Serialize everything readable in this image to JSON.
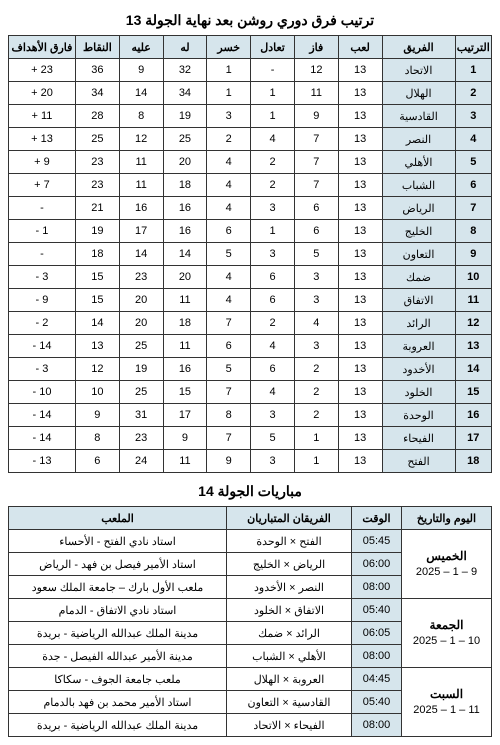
{
  "standings": {
    "title": "ترتيب فرق دوري روشن بعد نهاية الجولة 13",
    "headers": {
      "rank": "الترتيب",
      "team": "الفريق",
      "played": "لعب",
      "won": "فاز",
      "drawn": "تعادل",
      "lost": "خسر",
      "for": "له",
      "against": "عليه",
      "points": "النقاط",
      "gd": "فارق الأهداف"
    },
    "rows": [
      {
        "rank": "1",
        "team": "الاتحاد",
        "p": "13",
        "w": "12",
        "d": "-",
        "l": "1",
        "gf": "32",
        "ga": "9",
        "pts": "36",
        "gd": "23 +"
      },
      {
        "rank": "2",
        "team": "الهلال",
        "p": "13",
        "w": "11",
        "d": "1",
        "l": "1",
        "gf": "34",
        "ga": "14",
        "pts": "34",
        "gd": "20 +"
      },
      {
        "rank": "3",
        "team": "القادسية",
        "p": "13",
        "w": "9",
        "d": "1",
        "l": "3",
        "gf": "19",
        "ga": "8",
        "pts": "28",
        "gd": "11 +"
      },
      {
        "rank": "4",
        "team": "النصر",
        "p": "13",
        "w": "7",
        "d": "4",
        "l": "2",
        "gf": "25",
        "ga": "12",
        "pts": "25",
        "gd": "13 +"
      },
      {
        "rank": "5",
        "team": "الأهلي",
        "p": "13",
        "w": "7",
        "d": "2",
        "l": "4",
        "gf": "20",
        "ga": "11",
        "pts": "23",
        "gd": "9 +"
      },
      {
        "rank": "6",
        "team": "الشباب",
        "p": "13",
        "w": "7",
        "d": "2",
        "l": "4",
        "gf": "18",
        "ga": "11",
        "pts": "23",
        "gd": "7 +"
      },
      {
        "rank": "7",
        "team": "الرياض",
        "p": "13",
        "w": "6",
        "d": "3",
        "l": "4",
        "gf": "16",
        "ga": "16",
        "pts": "21",
        "gd": "-"
      },
      {
        "rank": "8",
        "team": "الخليج",
        "p": "13",
        "w": "6",
        "d": "1",
        "l": "6",
        "gf": "16",
        "ga": "17",
        "pts": "19",
        "gd": "1 -"
      },
      {
        "rank": "9",
        "team": "التعاون",
        "p": "13",
        "w": "5",
        "d": "3",
        "l": "5",
        "gf": "14",
        "ga": "14",
        "pts": "18",
        "gd": "-"
      },
      {
        "rank": "10",
        "team": "ضمك",
        "p": "13",
        "w": "3",
        "d": "6",
        "l": "4",
        "gf": "20",
        "ga": "23",
        "pts": "15",
        "gd": "3 -"
      },
      {
        "rank": "11",
        "team": "الاتفاق",
        "p": "13",
        "w": "3",
        "d": "6",
        "l": "4",
        "gf": "11",
        "ga": "20",
        "pts": "15",
        "gd": "9 -"
      },
      {
        "rank": "12",
        "team": "الرائد",
        "p": "13",
        "w": "4",
        "d": "2",
        "l": "7",
        "gf": "18",
        "ga": "20",
        "pts": "14",
        "gd": "2 -"
      },
      {
        "rank": "13",
        "team": "العروبة",
        "p": "13",
        "w": "3",
        "d": "4",
        "l": "6",
        "gf": "11",
        "ga": "25",
        "pts": "13",
        "gd": "14 -"
      },
      {
        "rank": "14",
        "team": "الأخدود",
        "p": "13",
        "w": "2",
        "d": "6",
        "l": "5",
        "gf": "16",
        "ga": "19",
        "pts": "12",
        "gd": "3 -"
      },
      {
        "rank": "15",
        "team": "الخلود",
        "p": "13",
        "w": "2",
        "d": "4",
        "l": "7",
        "gf": "15",
        "ga": "25",
        "pts": "10",
        "gd": "10 -"
      },
      {
        "rank": "16",
        "team": "الوحدة",
        "p": "13",
        "w": "2",
        "d": "3",
        "l": "8",
        "gf": "17",
        "ga": "31",
        "pts": "9",
        "gd": "14 -"
      },
      {
        "rank": "17",
        "team": "الفيحاء",
        "p": "13",
        "w": "1",
        "d": "5",
        "l": "7",
        "gf": "9",
        "ga": "23",
        "pts": "8",
        "gd": "14 -"
      },
      {
        "rank": "18",
        "team": "الفتح",
        "p": "13",
        "w": "1",
        "d": "3",
        "l": "9",
        "gf": "11",
        "ga": "24",
        "pts": "6",
        "gd": "13 -"
      }
    ]
  },
  "schedule": {
    "title": "مباريات الجولة 14",
    "headers": {
      "day": "اليوم والتاريخ",
      "time": "الوقت",
      "match": "الفريقان المتباريان",
      "venue": "الملعب"
    },
    "days": [
      {
        "name": "الخميس",
        "date": "9 – 1 – 2025",
        "matches": [
          {
            "time": "05:45",
            "match": "الفتح × الوحدة",
            "venue": "استاد نادي الفتح - الأحساء"
          },
          {
            "time": "06:00",
            "match": "الرياض × الخليج",
            "venue": "استاد الأمير فيصل بن فهد - الرياض"
          },
          {
            "time": "08:00",
            "match": "النصر × الأخدود",
            "venue": "ملعب الأول بارك – جامعة الملك سعود"
          }
        ]
      },
      {
        "name": "الجمعة",
        "date": "10 – 1 – 2025",
        "matches": [
          {
            "time": "05:40",
            "match": "الاتفاق × الخلود",
            "venue": "استاد نادي الاتفاق - الدمام"
          },
          {
            "time": "06:05",
            "match": "الرائد × ضمك",
            "venue": "مدينة الملك عبدالله الرياضية - بريدة"
          },
          {
            "time": "08:00",
            "match": "الأهلي × الشباب",
            "venue": "مدينة الأمير عبدالله الفيصل - جدة"
          }
        ]
      },
      {
        "name": "السبت",
        "date": "11 – 1 – 2025",
        "matches": [
          {
            "time": "04:45",
            "match": "العروبة × الهلال",
            "venue": "ملعب جامعة الجوف - سكاكا"
          },
          {
            "time": "05:40",
            "match": "القادسية × التعاون",
            "venue": "استاد الأمير محمد بن فهد بالدمام"
          },
          {
            "time": "08:00",
            "match": "الفيحاء × الاتحاد",
            "venue": "مدينة الملك عبدالله الرياضية - بريدة"
          }
        ]
      }
    ]
  }
}
